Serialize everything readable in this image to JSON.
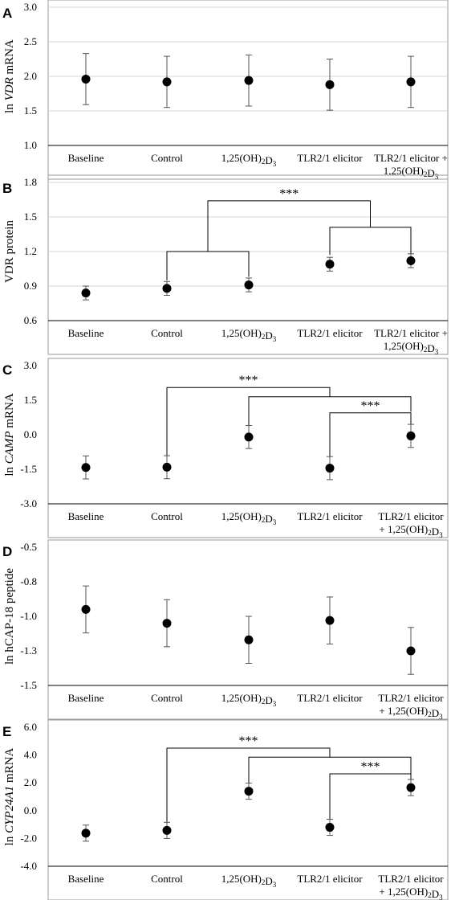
{
  "chart_data": [
    {
      "panel": "A",
      "type": "scatter",
      "ylabel_parts": [
        {
          "t": "ln "
        },
        {
          "t": "VDR",
          "i": true
        },
        {
          "t": " mRNA"
        }
      ],
      "ylim": [
        1.0,
        3.0
      ],
      "yticks": [
        "1.0",
        "1.5",
        "2.0",
        "2.5",
        "3.0"
      ],
      "categories": [
        [
          "Baseline"
        ],
        [
          "Control"
        ],
        [
          "1,25(OH)₂D₃"
        ],
        [
          "TLR2/1 elicitor"
        ],
        [
          "TLR2/1 elicitor +",
          "1,25(OH)₂D₃"
        ]
      ],
      "values": [
        1.96,
        1.92,
        1.94,
        1.88,
        1.92
      ],
      "errors": [
        0.37,
        0.37,
        0.37,
        0.37,
        0.37
      ],
      "brackets": [],
      "grid": true
    },
    {
      "panel": "B",
      "type": "scatter",
      "ylabel_parts": [
        {
          "t": "VDR protein"
        }
      ],
      "ylim": [
        0.6,
        1.8
      ],
      "yticks": [
        "0.6",
        "0.9",
        "1.2",
        "1.5",
        "1.8"
      ],
      "categories": [
        [
          "Baseline"
        ],
        [
          "Control"
        ],
        [
          "1,25(OH)₂D₃"
        ],
        [
          "TLR2/1 elicitor"
        ],
        [
          "TLR2/1 elicitor +",
          "1,25(OH)₂D₃"
        ]
      ],
      "values": [
        0.84,
        0.88,
        0.91,
        1.09,
        1.12
      ],
      "errors": [
        0.06,
        0.06,
        0.06,
        0.06,
        0.06
      ],
      "brackets": [
        {
          "a": 3,
          "b": 4,
          "y": 1.41,
          "from": [
            1.17,
            1.18
          ],
          "label": ""
        },
        {
          "a": 1,
          "b": 2,
          "y": 1.2,
          "from": [
            0.95,
            0.98
          ],
          "label": ""
        },
        {
          "a": 1.5,
          "b": 3.5,
          "y": 1.64,
          "from": [
            1.2,
            1.41
          ],
          "label": "***"
        }
      ],
      "grid": true
    },
    {
      "panel": "C",
      "type": "scatter",
      "ylabel_parts": [
        {
          "t": "ln "
        },
        {
          "t": "CAMP",
          "i": true
        },
        {
          "t": " mRNA"
        }
      ],
      "ylim": [
        -3.0,
        3.0
      ],
      "yticks": [
        "-3.0",
        "-1.5",
        "0.0",
        "1.5",
        "3.0"
      ],
      "categories": [
        [
          "Baseline"
        ],
        [
          "Control"
        ],
        [
          "1,25(OH)₂D₃"
        ],
        [
          "TLR2/1 elicitor"
        ],
        [
          "TLR2/1 elicitor",
          "+ 1,25(OH)₂D₃"
        ]
      ],
      "values": [
        -1.42,
        -1.41,
        -0.1,
        -1.45,
        -0.05
      ],
      "errors": [
        0.5,
        0.5,
        0.5,
        0.5,
        0.5
      ],
      "brackets": [
        {
          "a": 3,
          "b": 4,
          "y": 0.95,
          "from": [
            -0.95,
            0.45
          ],
          "label": "***"
        },
        {
          "a": 2,
          "b": 4,
          "y": 1.65,
          "from": [
            0.4,
            1.0
          ],
          "label": ""
        },
        {
          "a": 1,
          "b": 3,
          "y": 2.05,
          "from": [
            -0.91,
            1.65
          ],
          "label": "***"
        }
      ],
      "grid": false
    },
    {
      "panel": "D",
      "type": "scatter",
      "ylabel_parts": [
        {
          "t": "ln hCAP-18 peptide"
        }
      ],
      "ylim": [
        -1.5,
        -0.5
      ],
      "yticks": [
        "-1.5",
        "-1.3",
        "-1.0",
        "-0.8",
        "-0.5"
      ],
      "categories": [
        [
          "Baseline"
        ],
        [
          "Control"
        ],
        [
          "1,25(OH)₂D₃"
        ],
        [
          "TLR2/1 elicitor"
        ],
        [
          "TLR2/1 elicitor",
          "+ 1,25(OH)₂D₃"
        ]
      ],
      "values": [
        -0.95,
        -1.05,
        -1.17,
        -1.03,
        -1.25
      ],
      "errors": [
        0.17,
        0.17,
        0.17,
        0.17,
        0.17
      ],
      "brackets": [],
      "grid": false
    },
    {
      "panel": "E",
      "type": "scatter",
      "ylabel_parts": [
        {
          "t": "ln "
        },
        {
          "t": "CYP24A1",
          "i": true
        },
        {
          "t": " mRNA"
        }
      ],
      "ylim": [
        -4.0,
        6.0
      ],
      "yticks": [
        "-4.0",
        "-2.0",
        "0.0",
        "2.0",
        "4.0",
        "6.0"
      ],
      "categories": [
        [
          "Baseline"
        ],
        [
          "Control"
        ],
        [
          "1,25(OH)₂D₃"
        ],
        [
          "TLR2/1 elicitor"
        ],
        [
          "TLR2/1 elicitor",
          "+ 1,25(OH)₂D₃"
        ]
      ],
      "values": [
        -1.62,
        -1.42,
        1.4,
        -1.2,
        1.66
      ],
      "errors": [
        0.58,
        0.58,
        0.58,
        0.58,
        0.58
      ],
      "brackets": [
        {
          "a": 3,
          "b": 4,
          "y": 2.65,
          "from": [
            -0.62,
            2.24
          ],
          "label": "***"
        },
        {
          "a": 2,
          "b": 4,
          "y": 3.85,
          "from": [
            1.98,
            2.65
          ],
          "label": ""
        },
        {
          "a": 1,
          "b": 3,
          "y": 4.5,
          "from": [
            -0.84,
            3.85
          ],
          "label": "***"
        }
      ],
      "grid": false
    }
  ]
}
